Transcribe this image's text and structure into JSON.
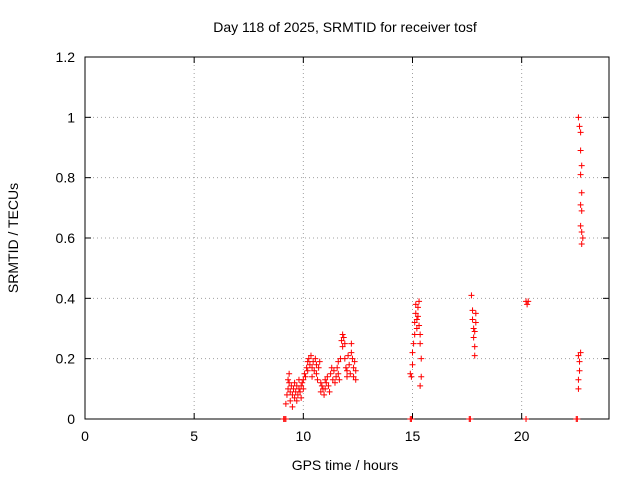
{
  "chart_data": {
    "type": "scatter",
    "title": "Day 118 of 2025, SRMTID for receiver tosf",
    "xlabel": "GPS time / hours",
    "ylabel": "SRMTID / TECUs",
    "xlim": [
      0,
      24
    ],
    "ylim": [
      0,
      1.2
    ],
    "xticks": [
      0,
      5,
      10,
      15,
      20
    ],
    "xtick_labels": [
      "0",
      "5",
      "10",
      "15",
      "20"
    ],
    "yticks": [
      0,
      0.2,
      0.4,
      0.6,
      0.8,
      1.0,
      1.2
    ],
    "ytick_labels": [
      "0",
      "0.2",
      "0.4",
      "0.6",
      "0.8",
      "1",
      "1.2"
    ],
    "grid": true,
    "marker": "plus",
    "color": "#ff0000",
    "series": [
      {
        "points": [
          [
            9.1,
            0.0
          ],
          [
            9.15,
            0.0
          ],
          [
            9.2,
            0.0
          ],
          [
            9.2,
            0.05
          ],
          [
            9.25,
            0.08
          ],
          [
            9.3,
            0.1
          ],
          [
            9.3,
            0.13
          ],
          [
            9.35,
            0.15
          ],
          [
            9.35,
            0.12
          ],
          [
            9.4,
            0.09
          ],
          [
            9.4,
            0.06
          ],
          [
            9.45,
            0.11
          ],
          [
            9.5,
            0.04
          ],
          [
            9.5,
            0.08
          ],
          [
            9.55,
            0.1
          ],
          [
            9.6,
            0.12
          ],
          [
            9.6,
            0.07
          ],
          [
            9.65,
            0.09
          ],
          [
            9.7,
            0.11
          ],
          [
            9.7,
            0.06
          ],
          [
            9.75,
            0.08
          ],
          [
            9.8,
            0.1
          ],
          [
            9.8,
            0.13
          ],
          [
            9.85,
            0.09
          ],
          [
            9.9,
            0.07
          ],
          [
            9.9,
            0.11
          ],
          [
            9.95,
            0.12
          ],
          [
            10.0,
            0.1
          ],
          [
            10.0,
            0.13
          ],
          [
            10.05,
            0.15
          ],
          [
            10.1,
            0.14
          ],
          [
            10.15,
            0.17
          ],
          [
            10.2,
            0.19
          ],
          [
            10.2,
            0.16
          ],
          [
            10.25,
            0.2
          ],
          [
            10.3,
            0.18
          ],
          [
            10.35,
            0.21
          ],
          [
            10.4,
            0.17
          ],
          [
            10.4,
            0.14
          ],
          [
            10.45,
            0.19
          ],
          [
            10.5,
            0.16
          ],
          [
            10.55,
            0.2
          ],
          [
            10.6,
            0.18
          ],
          [
            10.6,
            0.15
          ],
          [
            10.65,
            0.13
          ],
          [
            10.7,
            0.17
          ],
          [
            10.75,
            0.19
          ],
          [
            10.8,
            0.12
          ],
          [
            10.8,
            0.09
          ],
          [
            10.85,
            0.11
          ],
          [
            10.9,
            0.1
          ],
          [
            10.95,
            0.08
          ],
          [
            11.0,
            0.13
          ],
          [
            11.0,
            0.1
          ],
          [
            11.05,
            0.12
          ],
          [
            11.1,
            0.14
          ],
          [
            11.15,
            0.11
          ],
          [
            11.2,
            0.09
          ],
          [
            11.25,
            0.15
          ],
          [
            11.3,
            0.17
          ],
          [
            11.35,
            0.13
          ],
          [
            11.4,
            0.16
          ],
          [
            11.45,
            0.12
          ],
          [
            11.5,
            0.14
          ],
          [
            11.55,
            0.17
          ],
          [
            11.6,
            0.19
          ],
          [
            11.6,
            0.15
          ],
          [
            11.65,
            0.13
          ],
          [
            11.7,
            0.2
          ],
          [
            11.75,
            0.26
          ],
          [
            11.8,
            0.28
          ],
          [
            11.8,
            0.24
          ],
          [
            11.85,
            0.27
          ],
          [
            11.9,
            0.25
          ],
          [
            11.9,
            0.2
          ],
          [
            11.95,
            0.17
          ],
          [
            12.0,
            0.14
          ],
          [
            12.0,
            0.16
          ],
          [
            12.05,
            0.21
          ],
          [
            12.1,
            0.18
          ],
          [
            12.15,
            0.15
          ],
          [
            12.2,
            0.22
          ],
          [
            12.2,
            0.25
          ],
          [
            12.25,
            0.2
          ],
          [
            12.3,
            0.17
          ],
          [
            12.3,
            0.14
          ],
          [
            12.35,
            0.19
          ],
          [
            12.4,
            0.16
          ],
          [
            12.4,
            0.13
          ],
          [
            14.9,
            0.0
          ],
          [
            14.95,
            0.0
          ],
          [
            14.9,
            0.15
          ],
          [
            14.95,
            0.14
          ],
          [
            15.0,
            0.18
          ],
          [
            15.0,
            0.22
          ],
          [
            15.05,
            0.25
          ],
          [
            15.1,
            0.28
          ],
          [
            15.1,
            0.32
          ],
          [
            15.15,
            0.35
          ],
          [
            15.15,
            0.38
          ],
          [
            15.2,
            0.33
          ],
          [
            15.2,
            0.3
          ],
          [
            15.25,
            0.37
          ],
          [
            15.25,
            0.34
          ],
          [
            15.3,
            0.39
          ],
          [
            15.3,
            0.31
          ],
          [
            15.35,
            0.28
          ],
          [
            15.35,
            0.25
          ],
          [
            15.4,
            0.2
          ],
          [
            15.4,
            0.14
          ],
          [
            15.35,
            0.11
          ],
          [
            17.6,
            0.0
          ],
          [
            17.65,
            0.0
          ],
          [
            17.7,
            0.41
          ],
          [
            17.75,
            0.36
          ],
          [
            17.75,
            0.33
          ],
          [
            17.8,
            0.3
          ],
          [
            17.8,
            0.27
          ],
          [
            17.85,
            0.24
          ],
          [
            17.85,
            0.21
          ],
          [
            17.9,
            0.35
          ],
          [
            17.9,
            0.32
          ],
          [
            17.85,
            0.29
          ],
          [
            20.2,
            0.0
          ],
          [
            20.2,
            0.39
          ],
          [
            20.25,
            0.38
          ],
          [
            20.3,
            0.39
          ],
          [
            22.5,
            0.0
          ],
          [
            22.55,
            0.0
          ],
          [
            22.6,
            0.1
          ],
          [
            22.6,
            0.13
          ],
          [
            22.65,
            0.16
          ],
          [
            22.65,
            0.19
          ],
          [
            22.6,
            0.21
          ],
          [
            22.7,
            0.22
          ],
          [
            22.6,
            1.0
          ],
          [
            22.65,
            0.97
          ],
          [
            22.7,
            0.95
          ],
          [
            22.7,
            0.89
          ],
          [
            22.75,
            0.84
          ],
          [
            22.7,
            0.81
          ],
          [
            22.75,
            0.75
          ],
          [
            22.7,
            0.71
          ],
          [
            22.75,
            0.69
          ],
          [
            22.7,
            0.64
          ],
          [
            22.75,
            0.62
          ],
          [
            22.8,
            0.6
          ],
          [
            22.75,
            0.58
          ]
        ]
      }
    ]
  }
}
